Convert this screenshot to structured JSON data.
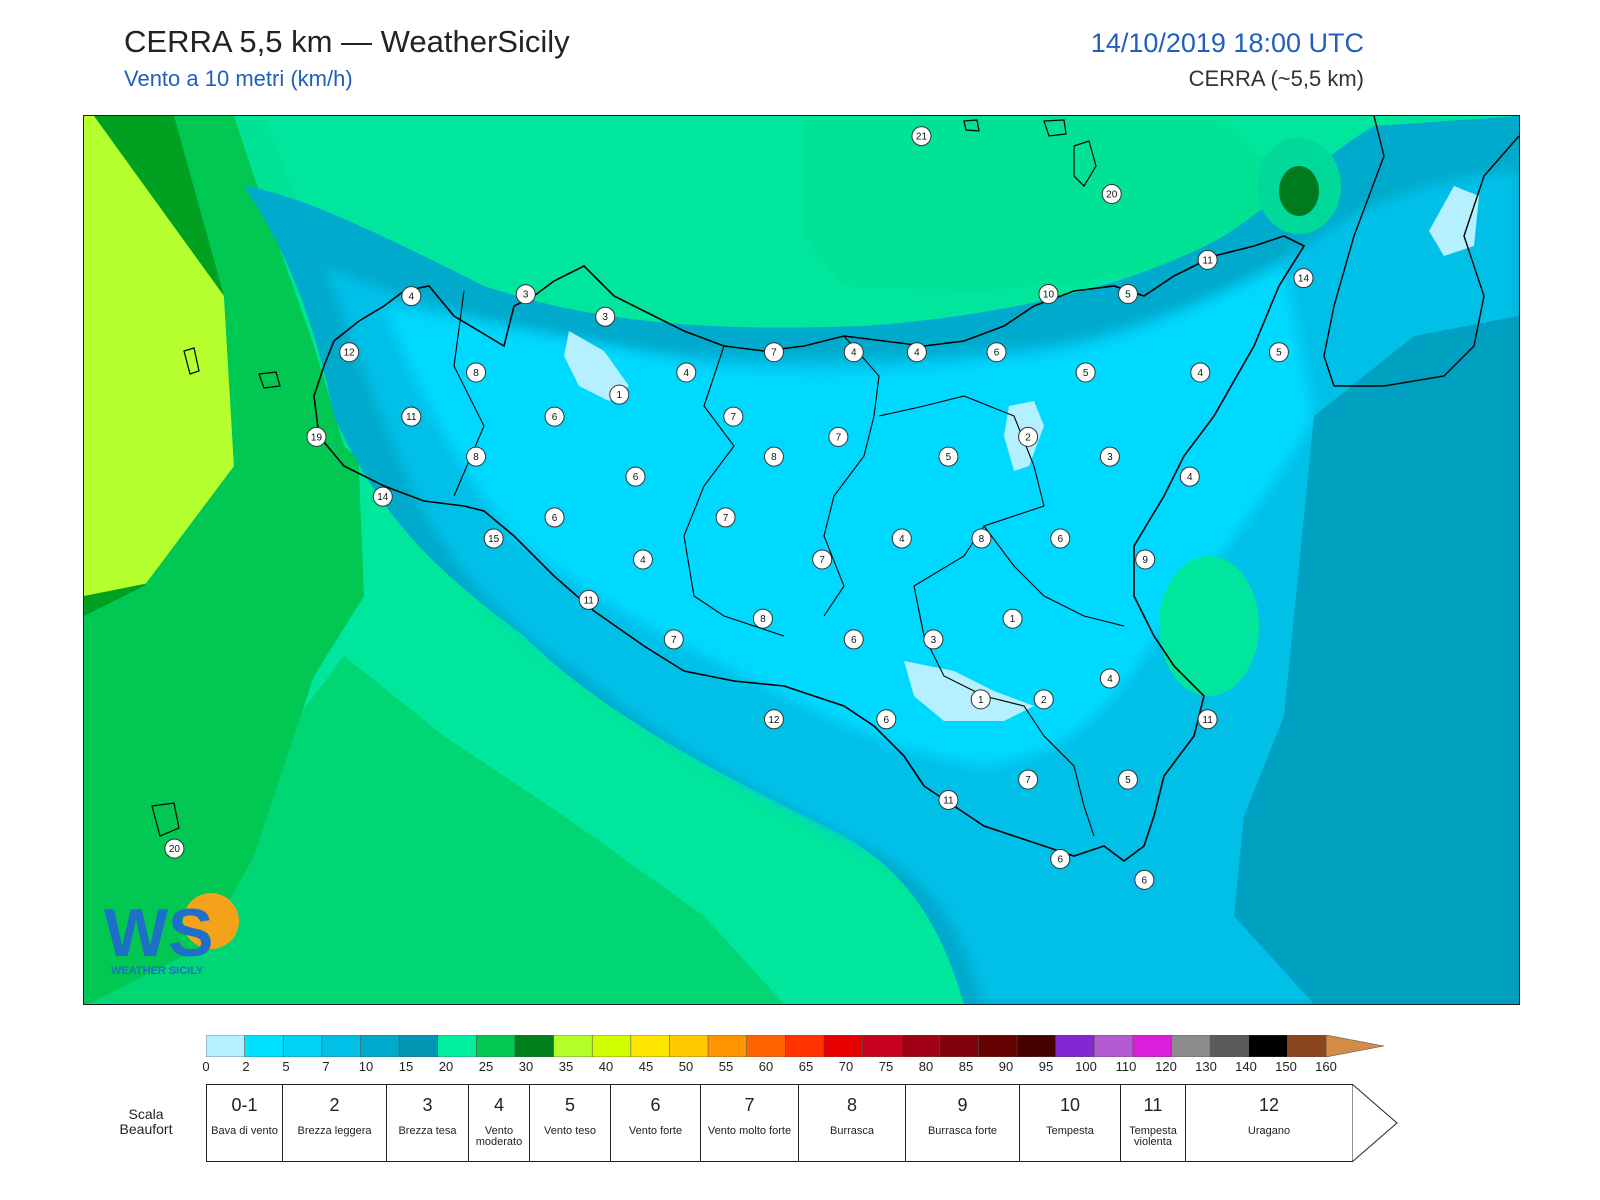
{
  "header": {
    "title": "CERRA 5,5 km — WeatherSicily",
    "subtitle": "Vento a 10 metri (km/h)",
    "datetime": "14/10/2019 18:00 UTC",
    "model": "CERRA (~5,5 km)"
  },
  "logo": {
    "text": "WS",
    "brand": "WEATHER SICILY"
  },
  "colors": {
    "sea_far": "#00e69c",
    "sea_mid": "#00c853",
    "sea_dark": "#007a1f",
    "yellowgreen": "#b5ff2e",
    "teal": "#009fb7",
    "cyan_mid": "#00bfe6",
    "cyan_light": "#00d9ff",
    "pale": "#b4f0ff",
    "coast": "#000000"
  },
  "wind_labels": [
    {
      "v": "21",
      "lx": 0.5836,
      "ly": 0.0226
    },
    {
      "v": "20",
      "lx": 0.7162,
      "ly": 0.0878
    },
    {
      "v": "11",
      "lx": 0.783,
      "ly": 0.162
    },
    {
      "v": "14",
      "lx": 0.8498,
      "ly": 0.1826
    },
    {
      "v": "4",
      "lx": 0.2281,
      "ly": 0.2029
    },
    {
      "v": "3",
      "lx": 0.3078,
      "ly": 0.2007
    },
    {
      "v": "3",
      "lx": 0.3632,
      "ly": 0.226
    },
    {
      "v": "10",
      "lx": 0.6721,
      "ly": 0.2004
    },
    {
      "v": "5",
      "lx": 0.7275,
      "ly": 0.2004
    },
    {
      "v": "12",
      "lx": 0.1848,
      "ly": 0.266
    },
    {
      "v": "7",
      "lx": 0.4808,
      "ly": 0.266
    },
    {
      "v": "4",
      "lx": 0.5364,
      "ly": 0.266
    },
    {
      "v": "4",
      "lx": 0.5804,
      "ly": 0.266
    },
    {
      "v": "6",
      "lx": 0.6359,
      "ly": 0.266
    },
    {
      "v": "5",
      "lx": 0.8327,
      "ly": 0.266
    },
    {
      "v": "8",
      "lx": 0.2732,
      "ly": 0.2888
    },
    {
      "v": "4",
      "lx": 0.4197,
      "ly": 0.2888
    },
    {
      "v": "5",
      "lx": 0.698,
      "ly": 0.2888
    },
    {
      "v": "4",
      "lx": 0.7779,
      "ly": 0.2888
    },
    {
      "v": "1",
      "lx": 0.373,
      "ly": 0.3138
    },
    {
      "v": "11",
      "lx": 0.2281,
      "ly": 0.3385
    },
    {
      "v": "6",
      "lx": 0.3279,
      "ly": 0.3385
    },
    {
      "v": "7",
      "lx": 0.4525,
      "ly": 0.3385
    },
    {
      "v": "19",
      "lx": 0.162,
      "ly": 0.3613
    },
    {
      "v": "7",
      "lx": 0.5257,
      "ly": 0.3613
    },
    {
      "v": "2",
      "lx": 0.6579,
      "ly": 0.3613
    },
    {
      "v": "8",
      "lx": 0.2732,
      "ly": 0.3836
    },
    {
      "v": "8",
      "lx": 0.4808,
      "ly": 0.3836
    },
    {
      "v": "5",
      "lx": 0.6024,
      "ly": 0.3836
    },
    {
      "v": "3",
      "lx": 0.7149,
      "ly": 0.3836
    },
    {
      "v": "6",
      "lx": 0.3843,
      "ly": 0.4061
    },
    {
      "v": "4",
      "lx": 0.7706,
      "ly": 0.4061
    },
    {
      "v": "14",
      "lx": 0.2082,
      "ly": 0.4287
    },
    {
      "v": "6",
      "lx": 0.3279,
      "ly": 0.452
    },
    {
      "v": "7",
      "lx": 0.4471,
      "ly": 0.452
    },
    {
      "v": "15",
      "lx": 0.2855,
      "ly": 0.4758
    },
    {
      "v": "4",
      "lx": 0.5699,
      "ly": 0.4758
    },
    {
      "v": "8",
      "lx": 0.6254,
      "ly": 0.4758
    },
    {
      "v": "6",
      "lx": 0.6803,
      "ly": 0.4758
    },
    {
      "v": "4",
      "lx": 0.3895,
      "ly": 0.4994
    },
    {
      "v": "7",
      "lx": 0.5144,
      "ly": 0.4994
    },
    {
      "v": "9",
      "lx": 0.7395,
      "ly": 0.4994
    },
    {
      "v": "11",
      "lx": 0.3517,
      "ly": 0.5449
    },
    {
      "v": "8",
      "lx": 0.4731,
      "ly": 0.5661
    },
    {
      "v": "1",
      "lx": 0.6471,
      "ly": 0.5661
    },
    {
      "v": "7",
      "lx": 0.411,
      "ly": 0.5894
    },
    {
      "v": "6",
      "lx": 0.5364,
      "ly": 0.5894
    },
    {
      "v": "3",
      "lx": 0.5919,
      "ly": 0.5894
    },
    {
      "v": "4",
      "lx": 0.7149,
      "ly": 0.6335
    },
    {
      "v": "1",
      "lx": 0.6249,
      "ly": 0.6569
    },
    {
      "v": "2",
      "lx": 0.6688,
      "ly": 0.6569
    },
    {
      "v": "12",
      "lx": 0.4808,
      "ly": 0.6794
    },
    {
      "v": "6",
      "lx": 0.5591,
      "ly": 0.6794
    },
    {
      "v": "11",
      "lx": 0.783,
      "ly": 0.6794
    },
    {
      "v": "7",
      "lx": 0.6579,
      "ly": 0.7473
    },
    {
      "v": "5",
      "lx": 0.7275,
      "ly": 0.7473
    },
    {
      "v": "11",
      "lx": 0.6024,
      "ly": 0.7702
    },
    {
      "v": "20",
      "lx": 0.063,
      "ly": 0.825
    },
    {
      "v": "6",
      "lx": 0.6803,
      "ly": 0.8367
    },
    {
      "v": "6",
      "lx": 0.7389,
      "ly": 0.8602
    }
  ],
  "colorbar": {
    "ticks": [
      "0",
      "2",
      "5",
      "7",
      "10",
      "15",
      "20",
      "25",
      "30",
      "35",
      "40",
      "45",
      "50",
      "55",
      "60",
      "65",
      "70",
      "75",
      "80",
      "85",
      "90",
      "95",
      "100",
      "110",
      "120",
      "130",
      "140",
      "150",
      "160"
    ],
    "colors": [
      "#b4f0ff",
      "#00e1ff",
      "#00d2f5",
      "#00c0e8",
      "#00aacc",
      "#0096b4",
      "#00f0a0",
      "#00c853",
      "#00801c",
      "#b4ff28",
      "#d2ff00",
      "#ffe600",
      "#ffc800",
      "#ff9600",
      "#ff6400",
      "#ff3200",
      "#e60000",
      "#c8001e",
      "#a00014",
      "#82000a",
      "#640000",
      "#460000",
      "#8228d2",
      "#b45ad2",
      "#dc1edc",
      "#8c8c8c",
      "#5a5a5a",
      "#000000",
      "#8c461e",
      "#d28c46"
    ]
  },
  "beaufort": {
    "title": "Scala Beaufort",
    "items": [
      {
        "n": "0-1",
        "name": "Bava di vento"
      },
      {
        "n": "2",
        "name": "Brezza leggera"
      },
      {
        "n": "3",
        "name": "Brezza tesa"
      },
      {
        "n": "4",
        "name": "Vento moderato"
      },
      {
        "n": "5",
        "name": "Vento teso"
      },
      {
        "n": "6",
        "name": "Vento forte"
      },
      {
        "n": "7",
        "name": "Vento molto forte"
      },
      {
        "n": "8",
        "name": "Burrasca"
      },
      {
        "n": "9",
        "name": "Burrasca forte"
      },
      {
        "n": "10",
        "name": "Tempesta"
      },
      {
        "n": "11",
        "name": "Tempesta violenta"
      },
      {
        "n": "12",
        "name": "Uragano"
      }
    ]
  }
}
